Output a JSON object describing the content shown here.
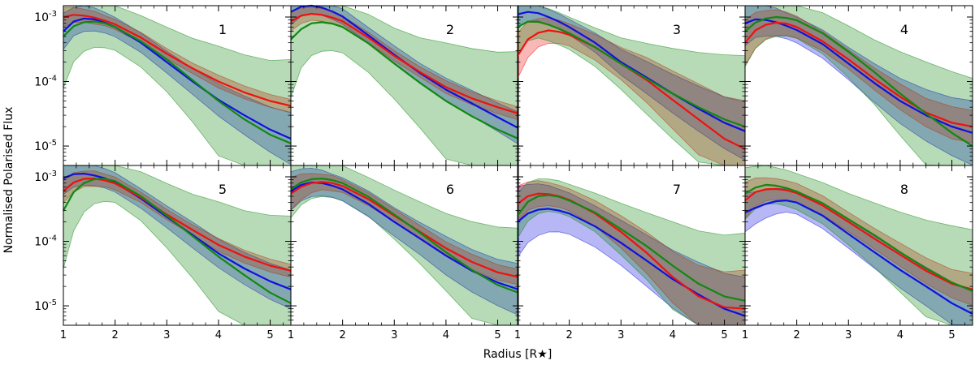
{
  "chart_data": {
    "type": "line",
    "ylabel": "Normalised Polarised Flux",
    "xlabel": "Radius [R★]",
    "xlim": [
      1,
      5.4
    ],
    "ylim": [
      5e-06,
      0.0015
    ],
    "yscale": "log",
    "xticks": [
      1,
      2,
      3,
      4,
      5
    ],
    "yticks": [
      {
        "value": 0.001,
        "base": "10",
        "exp": "-3"
      },
      {
        "value": 0.0001,
        "base": "10",
        "exp": "-4"
      },
      {
        "value": 1e-05,
        "base": "10",
        "exp": "-5"
      }
    ],
    "x": [
      1.0,
      1.2,
      1.4,
      1.6,
      1.8,
      2.0,
      2.5,
      3.0,
      3.5,
      4.0,
      4.5,
      5.0,
      5.4
    ],
    "colors": {
      "blue": "#1010e0",
      "green": "#118811",
      "red": "#ee1111"
    },
    "panels": [
      {
        "label": "1",
        "series": [
          {
            "name": "blue",
            "values": [
              0.0006,
              0.00085,
              0.00095,
              0.00092,
              0.00082,
              0.0007,
              0.0004,
              0.0002,
              0.0001,
              5.2e-05,
              3e-05,
              1.8e-05,
              1.3e-05
            ],
            "band": [
              0.28,
              0.22,
              0.2,
              0.18,
              0.16,
              0.15,
              0.15,
              0.17,
              0.2,
              0.25,
              0.3,
              0.35,
              0.4
            ]
          },
          {
            "name": "red",
            "values": [
              0.001,
              0.00108,
              0.00105,
              0.00098,
              0.00088,
              0.00077,
              0.00048,
              0.00027,
              0.00016,
              0.0001,
              6.8e-05,
              5e-05,
              4.2e-05
            ],
            "band": [
              0.15,
              0.12,
              0.1,
              0.1,
              0.08,
              0.08,
              0.08,
              0.08,
              0.08,
              0.1,
              0.1,
              0.1,
              0.1
            ]
          },
          {
            "name": "green",
            "values": [
              0.0005,
              0.00072,
              0.00083,
              0.00085,
              0.0008,
              0.0007,
              0.00042,
              0.00022,
              0.000105,
              5e-05,
              2.6e-05,
              1.5e-05,
              1.1e-05
            ],
            "band": [
              0.8,
              0.55,
              0.45,
              0.4,
              0.38,
              0.36,
              0.4,
              0.5,
              0.65,
              0.85,
              1.0,
              1.15,
              1.3
            ]
          }
        ]
      },
      {
        "label": "2",
        "series": [
          {
            "name": "blue",
            "values": [
              0.0012,
              0.00145,
              0.0015,
              0.0014,
              0.00122,
              0.00102,
              0.00052,
              0.00026,
              0.000135,
              7.5e-05,
              4.6e-05,
              2.8e-05,
              1.9e-05
            ],
            "band": [
              0.2,
              0.15,
              0.12,
              0.12,
              0.12,
              0.12,
              0.12,
              0.14,
              0.15,
              0.18,
              0.2,
              0.22,
              0.25
            ]
          },
          {
            "name": "red",
            "values": [
              0.00085,
              0.00105,
              0.00112,
              0.00108,
              0.00098,
              0.00086,
              0.00048,
              0.00025,
              0.00014,
              8.2e-05,
              5.5e-05,
              4e-05,
              3.2e-05
            ],
            "band": [
              0.15,
              0.12,
              0.1,
              0.1,
              0.1,
              0.08,
              0.08,
              0.08,
              0.08,
              0.1,
              0.1,
              0.1,
              0.1
            ]
          },
          {
            "name": "green",
            "values": [
              0.00045,
              0.00065,
              0.0008,
              0.00083,
              0.00079,
              0.0007,
              0.00039,
              0.00019,
              9.5e-05,
              5e-05,
              2.9e-05,
              1.8e-05,
              1.3e-05
            ],
            "band": [
              0.9,
              0.6,
              0.5,
              0.45,
              0.42,
              0.4,
              0.45,
              0.55,
              0.7,
              0.9,
              1.05,
              1.2,
              1.35
            ]
          }
        ]
      },
      {
        "label": "3",
        "series": [
          {
            "name": "blue",
            "values": [
              0.0011,
              0.0012,
              0.00115,
              0.001,
              0.00085,
              0.0007,
              0.0004,
              0.0002,
              0.000115,
              6.5e-05,
              3.8e-05,
              2.3e-05,
              1.7e-05
            ],
            "band": [
              0.2,
              0.15,
              0.12,
              0.12,
              0.12,
              0.12,
              0.15,
              0.2,
              0.25,
              0.3,
              0.35,
              0.4,
              0.45
            ]
          },
          {
            "name": "red",
            "values": [
              0.00025,
              0.00045,
              0.00057,
              0.00062,
              0.00059,
              0.00053,
              0.00034,
              0.00019,
              0.000105,
              5.2e-05,
              2.6e-05,
              1.3e-05,
              9e-06
            ],
            "band": [
              0.35,
              0.28,
              0.22,
              0.2,
              0.18,
              0.17,
              0.2,
              0.25,
              0.35,
              0.45,
              0.55,
              0.65,
              0.75
            ]
          },
          {
            "name": "green",
            "values": [
              0.0007,
              0.00085,
              0.00084,
              0.00076,
              0.00066,
              0.00056,
              0.00034,
              0.00019,
              0.00011,
              6.5e-05,
              4e-05,
              2.6e-05,
              2e-05
            ],
            "band": [
              0.4,
              0.3,
              0.25,
              0.25,
              0.25,
              0.25,
              0.3,
              0.4,
              0.55,
              0.7,
              0.85,
              1.0,
              1.1
            ]
          }
        ]
      },
      {
        "label": "4",
        "series": [
          {
            "name": "blue",
            "values": [
              0.0008,
              0.00092,
              0.0009,
              0.00083,
              0.00073,
              0.00063,
              0.00038,
              0.00019,
              9.5e-05,
              5e-05,
              3e-05,
              2e-05,
              1.6e-05
            ],
            "band": [
              0.35,
              0.28,
              0.25,
              0.22,
              0.2,
              0.2,
              0.22,
              0.25,
              0.3,
              0.35,
              0.4,
              0.45,
              0.5
            ]
          },
          {
            "name": "red",
            "values": [
              0.0004,
              0.00062,
              0.00076,
              0.00082,
              0.00079,
              0.0007,
              0.00042,
              0.00022,
              0.00011,
              5.8e-05,
              3.3e-05,
              2.3e-05,
              2e-05
            ],
            "band": [
              0.35,
              0.28,
              0.22,
              0.2,
              0.18,
              0.17,
              0.15,
              0.15,
              0.17,
              0.2,
              0.22,
              0.25,
              0.25
            ]
          },
          {
            "name": "green",
            "values": [
              0.0006,
              0.00082,
              0.00095,
              0.001,
              0.00097,
              0.00089,
              0.00056,
              0.00029,
              0.00014,
              6.5e-05,
              3.2e-05,
              1.6e-05,
              1e-05
            ],
            "band": [
              0.55,
              0.4,
              0.33,
              0.3,
              0.28,
              0.28,
              0.32,
              0.4,
              0.5,
              0.65,
              0.8,
              0.95,
              1.05
            ]
          }
        ]
      },
      {
        "label": "5",
        "series": [
          {
            "name": "blue",
            "values": [
              0.00095,
              0.0011,
              0.00112,
              0.00105,
              0.00095,
              0.00082,
              0.00046,
              0.00024,
              0.000125,
              6.5e-05,
              3.8e-05,
              2.4e-05,
              1.8e-05
            ],
            "band": [
              0.25,
              0.2,
              0.18,
              0.16,
              0.15,
              0.15,
              0.15,
              0.17,
              0.2,
              0.22,
              0.25,
              0.28,
              0.3
            ]
          },
          {
            "name": "red",
            "values": [
              0.0006,
              0.00082,
              0.00093,
              0.00094,
              0.00088,
              0.00079,
              0.00048,
              0.00026,
              0.00015,
              8.8e-05,
              5.8e-05,
              4.2e-05,
              3.5e-05
            ],
            "band": [
              0.18,
              0.15,
              0.12,
              0.12,
              0.1,
              0.1,
              0.08,
              0.08,
              0.08,
              0.1,
              0.1,
              0.1,
              0.1
            ]
          },
          {
            "name": "green",
            "values": [
              0.0003,
              0.00058,
              0.0008,
              0.00092,
              0.00093,
              0.00086,
              0.0005,
              0.00025,
              0.00012,
              5.8e-05,
              3e-05,
              1.6e-05,
              1.1e-05
            ],
            "band": [
              0.9,
              0.6,
              0.45,
              0.38,
              0.35,
              0.33,
              0.38,
              0.5,
              0.65,
              0.85,
              1.0,
              1.2,
              1.35
            ]
          }
        ]
      },
      {
        "label": "6",
        "series": [
          {
            "name": "blue",
            "values": [
              0.0006,
              0.00075,
              0.00082,
              0.0008,
              0.00073,
              0.00064,
              0.00038,
              0.0002,
              0.00011,
              6e-05,
              3.5e-05,
              2.3e-05,
              1.8e-05
            ],
            "band": [
              0.3,
              0.25,
              0.22,
              0.2,
              0.18,
              0.18,
              0.2,
              0.22,
              0.25,
              0.3,
              0.33,
              0.36,
              0.4
            ]
          },
          {
            "name": "red",
            "values": [
              0.00055,
              0.0007,
              0.0008,
              0.00083,
              0.0008,
              0.00072,
              0.00045,
              0.00025,
              0.00014,
              7.8e-05,
              4.8e-05,
              3.3e-05,
              2.8e-05
            ],
            "band": [
              0.25,
              0.2,
              0.15,
              0.12,
              0.12,
              0.1,
              0.1,
              0.1,
              0.1,
              0.1,
              0.12,
              0.12,
              0.12
            ]
          },
          {
            "name": "green",
            "values": [
              0.00065,
              0.00082,
              0.00092,
              0.00094,
              0.00089,
              0.0008,
              0.00049,
              0.00026,
              0.000135,
              6.8e-05,
              3.6e-05,
              2.1e-05,
              1.6e-05
            ],
            "band": [
              0.45,
              0.35,
              0.3,
              0.28,
              0.27,
              0.27,
              0.3,
              0.38,
              0.48,
              0.6,
              0.75,
              0.9,
              1.0
            ]
          }
        ]
      },
      {
        "label": "7",
        "series": [
          {
            "name": "blue",
            "values": [
              0.0002,
              0.00027,
              0.00031,
              0.00032,
              0.0003,
              0.00027,
              0.00017,
              9.5e-05,
              5e-05,
              2.6e-05,
              1.5e-05,
              9e-06,
              7e-06
            ],
            "band": [
              0.55,
              0.45,
              0.4,
              0.36,
              0.33,
              0.32,
              0.32,
              0.35,
              0.4,
              0.45,
              0.5,
              0.55,
              0.6
            ]
          },
          {
            "name": "red",
            "values": [
              0.00038,
              0.0005,
              0.00055,
              0.00054,
              0.0005,
              0.00044,
              0.00027,
              0.00014,
              6.6e-05,
              2.8e-05,
              1.4e-05,
              9.5e-06,
              9e-06
            ],
            "band": [
              0.28,
              0.22,
              0.2,
              0.18,
              0.17,
              0.17,
              0.2,
              0.25,
              0.32,
              0.4,
              0.48,
              0.55,
              0.6
            ]
          },
          {
            "name": "green",
            "values": [
              0.00025,
              0.00041,
              0.0005,
              0.00052,
              0.00049,
              0.00043,
              0.00028,
              0.000155,
              8.4e-05,
              4.2e-05,
              2.2e-05,
              1.4e-05,
              1.2e-05
            ],
            "band": [
              0.35,
              0.3,
              0.27,
              0.25,
              0.25,
              0.25,
              0.3,
              0.4,
              0.52,
              0.68,
              0.82,
              0.95,
              1.05
            ]
          }
        ]
      },
      {
        "label": "8",
        "series": [
          {
            "name": "blue",
            "values": [
              0.00028,
              0.00033,
              0.00038,
              0.00042,
              0.00043,
              0.0004,
              0.00025,
              0.00013,
              6.8e-05,
              3.6e-05,
              2e-05,
              1.1e-05,
              7.5e-06
            ],
            "band": [
              0.3,
              0.25,
              0.22,
              0.2,
              0.18,
              0.18,
              0.2,
              0.22,
              0.25,
              0.28,
              0.3,
              0.33,
              0.35
            ]
          },
          {
            "name": "red",
            "values": [
              0.00043,
              0.00058,
              0.00064,
              0.00065,
              0.00062,
              0.00056,
              0.00036,
              0.0002,
              0.00011,
              6.2e-05,
              3.5e-05,
              2.2e-05,
              1.8e-05
            ],
            "band": [
              0.28,
              0.22,
              0.18,
              0.16,
              0.15,
              0.15,
              0.15,
              0.15,
              0.16,
              0.18,
              0.2,
              0.22,
              0.25
            ]
          },
          {
            "name": "green",
            "values": [
              0.00055,
              0.00068,
              0.00075,
              0.00073,
              0.00067,
              0.00059,
              0.00039,
              0.00022,
              0.000125,
              6.8e-05,
              3.8e-05,
              2.3e-05,
              1.7e-05
            ],
            "band": [
              0.4,
              0.33,
              0.3,
              0.28,
              0.28,
              0.28,
              0.32,
              0.4,
              0.5,
              0.62,
              0.75,
              0.88,
              0.95
            ]
          }
        ]
      }
    ]
  }
}
